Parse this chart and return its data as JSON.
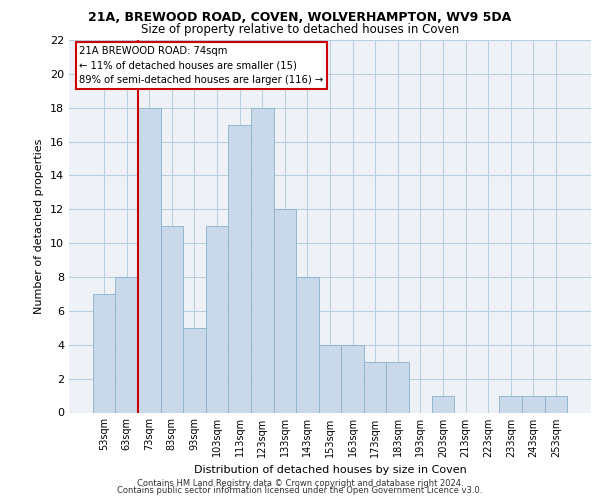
{
  "title1": "21A, BREWOOD ROAD, COVEN, WOLVERHAMPTON, WV9 5DA",
  "title2": "Size of property relative to detached houses in Coven",
  "xlabel": "Distribution of detached houses by size in Coven",
  "ylabel": "Number of detached properties",
  "bar_color": "#c9d9ea",
  "bar_edge_color": "#8ab0cc",
  "categories": [
    "53sqm",
    "63sqm",
    "73sqm",
    "83sqm",
    "93sqm",
    "103sqm",
    "113sqm",
    "123sqm",
    "133sqm",
    "143sqm",
    "153sqm",
    "163sqm",
    "173sqm",
    "183sqm",
    "193sqm",
    "203sqm",
    "213sqm",
    "223sqm",
    "233sqm",
    "243sqm",
    "253sqm"
  ],
  "values": [
    7,
    8,
    18,
    11,
    5,
    11,
    17,
    18,
    12,
    8,
    4,
    4,
    3,
    3,
    0,
    1,
    0,
    0,
    1,
    1,
    1
  ],
  "ylim": [
    0,
    22
  ],
  "yticks": [
    0,
    2,
    4,
    6,
    8,
    10,
    12,
    14,
    16,
    18,
    20,
    22
  ],
  "annotation_box_text": "21A BREWOOD ROAD: 74sqm\n← 11% of detached houses are smaller (15)\n89% of semi-detached houses are larger (116) →",
  "annotation_box_color": "#cc0000",
  "footnote1": "Contains HM Land Registry data © Crown copyright and database right 2024.",
  "footnote2": "Contains public sector information licensed under the Open Government Licence v3.0.",
  "grid_color": "#b8cfe0",
  "bg_color": "#eef2f7"
}
